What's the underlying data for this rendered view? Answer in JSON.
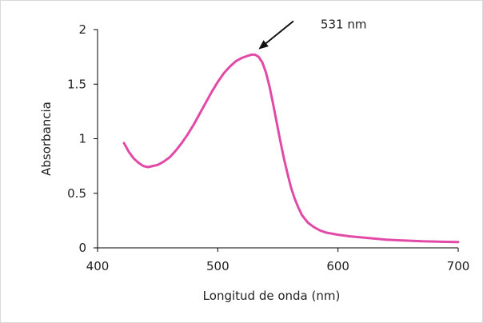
{
  "chart_data": {
    "type": "line",
    "title": "",
    "xlabel": "Longitud de onda (nm)",
    "ylabel": "Absorbancia",
    "xlim": [
      400,
      700
    ],
    "ylim": [
      0,
      2
    ],
    "xticks": [
      "400",
      "500",
      "600",
      "700"
    ],
    "yticks": [
      "0",
      "0.5",
      "1",
      "1.5",
      "2"
    ],
    "grid": false,
    "legend": "none",
    "series": [
      {
        "color": "#e24aa8",
        "x": [
          422,
          426,
          430,
          434,
          438,
          442,
          446,
          450,
          455,
          460,
          465,
          470,
          475,
          480,
          485,
          490,
          495,
          500,
          505,
          510,
          515,
          520,
          525,
          528,
          531,
          534,
          537,
          540,
          543,
          546,
          549,
          552,
          555,
          558,
          561,
          564,
          567,
          570,
          575,
          580,
          585,
          590,
          595,
          600,
          610,
          620,
          630,
          640,
          650,
          660,
          670,
          680,
          690,
          700
        ],
        "y": [
          0.96,
          0.88,
          0.82,
          0.78,
          0.75,
          0.74,
          0.75,
          0.76,
          0.79,
          0.83,
          0.89,
          0.96,
          1.04,
          1.13,
          1.23,
          1.33,
          1.43,
          1.52,
          1.6,
          1.66,
          1.71,
          1.74,
          1.76,
          1.77,
          1.77,
          1.75,
          1.7,
          1.61,
          1.48,
          1.32,
          1.15,
          0.98,
          0.82,
          0.68,
          0.55,
          0.45,
          0.37,
          0.3,
          0.23,
          0.19,
          0.16,
          0.14,
          0.13,
          0.12,
          0.105,
          0.095,
          0.085,
          0.075,
          0.07,
          0.065,
          0.06,
          0.058,
          0.055,
          0.053
        ]
      }
    ],
    "annotation": {
      "text": "531 nm",
      "x": 531,
      "y": 1.77,
      "color": "#111111"
    }
  }
}
